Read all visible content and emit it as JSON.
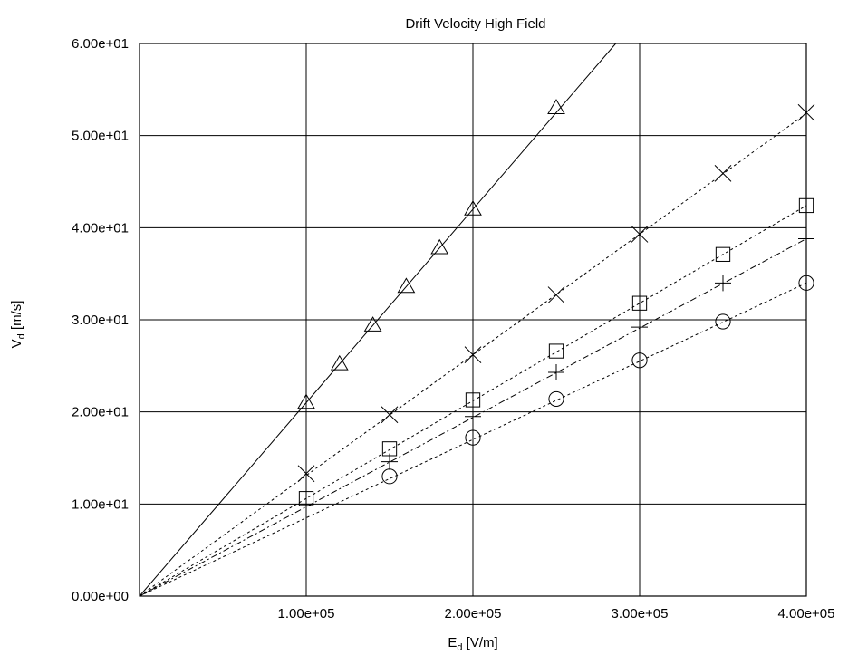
{
  "chart_data": {
    "type": "scatter",
    "title": "Drift Velocity High Field",
    "xlabel": {
      "main": "E",
      "sub": "d",
      "unit": " [V/m]"
    },
    "ylabel": {
      "main": "V",
      "sub": "d",
      "unit": " [m/s]"
    },
    "xlim": [
      0,
      400000
    ],
    "ylim": [
      0,
      60
    ],
    "grid": true,
    "legend": "none",
    "x_ticks": [
      {
        "value": 100000,
        "label": "1.00e+05"
      },
      {
        "value": 200000,
        "label": "2.00e+05"
      },
      {
        "value": 300000,
        "label": "3.00e+05"
      },
      {
        "value": 400000,
        "label": "4.00e+05"
      }
    ],
    "y_ticks": [
      {
        "value": 0,
        "label": "0.00e+00"
      },
      {
        "value": 10,
        "label": "1.00e+01"
      },
      {
        "value": 20,
        "label": "2.00e+01"
      },
      {
        "value": 30,
        "label": "3.00e+01"
      },
      {
        "value": 40,
        "label": "4.00e+01"
      },
      {
        "value": 50,
        "label": "5.00e+01"
      },
      {
        "value": 60,
        "label": "6.00e+01"
      }
    ],
    "series": [
      {
        "marker": "triangle",
        "line_style": "solid",
        "fit_slope": 0.00021,
        "x": [
          100000,
          120000,
          140000,
          160000,
          180000,
          200000,
          250000
        ],
        "y": [
          21.0,
          25.2,
          29.4,
          33.6,
          37.8,
          42.0,
          53.0
        ]
      },
      {
        "marker": "cross",
        "line_style": "dotted",
        "fit_slope": 0.000131,
        "x": [
          100000,
          150000,
          200000,
          250000,
          300000,
          350000,
          400000
        ],
        "y": [
          13.3,
          19.7,
          26.2,
          32.7,
          39.3,
          45.9,
          52.5
        ]
      },
      {
        "marker": "square",
        "line_style": "dotted",
        "fit_slope": 0.000106,
        "x": [
          100000,
          150000,
          200000,
          250000,
          300000,
          350000,
          400000
        ],
        "y": [
          10.6,
          16.0,
          21.3,
          26.6,
          31.8,
          37.1,
          42.4
        ]
      },
      {
        "marker": "plus",
        "line_style": "dashdot",
        "fit_slope": 9.7e-05,
        "x": [
          100000,
          150000,
          200000,
          250000,
          300000,
          350000,
          400000
        ],
        "y": [
          10.0,
          14.6,
          19.5,
          24.3,
          29.2,
          34.0,
          38.8
        ]
      },
      {
        "marker": "circle",
        "line_style": "dotted",
        "fit_slope": 8.5e-05,
        "x": [
          150000,
          200000,
          250000,
          300000,
          350000,
          400000
        ],
        "y": [
          13.0,
          17.2,
          21.4,
          25.6,
          29.8,
          34.0
        ]
      }
    ]
  }
}
